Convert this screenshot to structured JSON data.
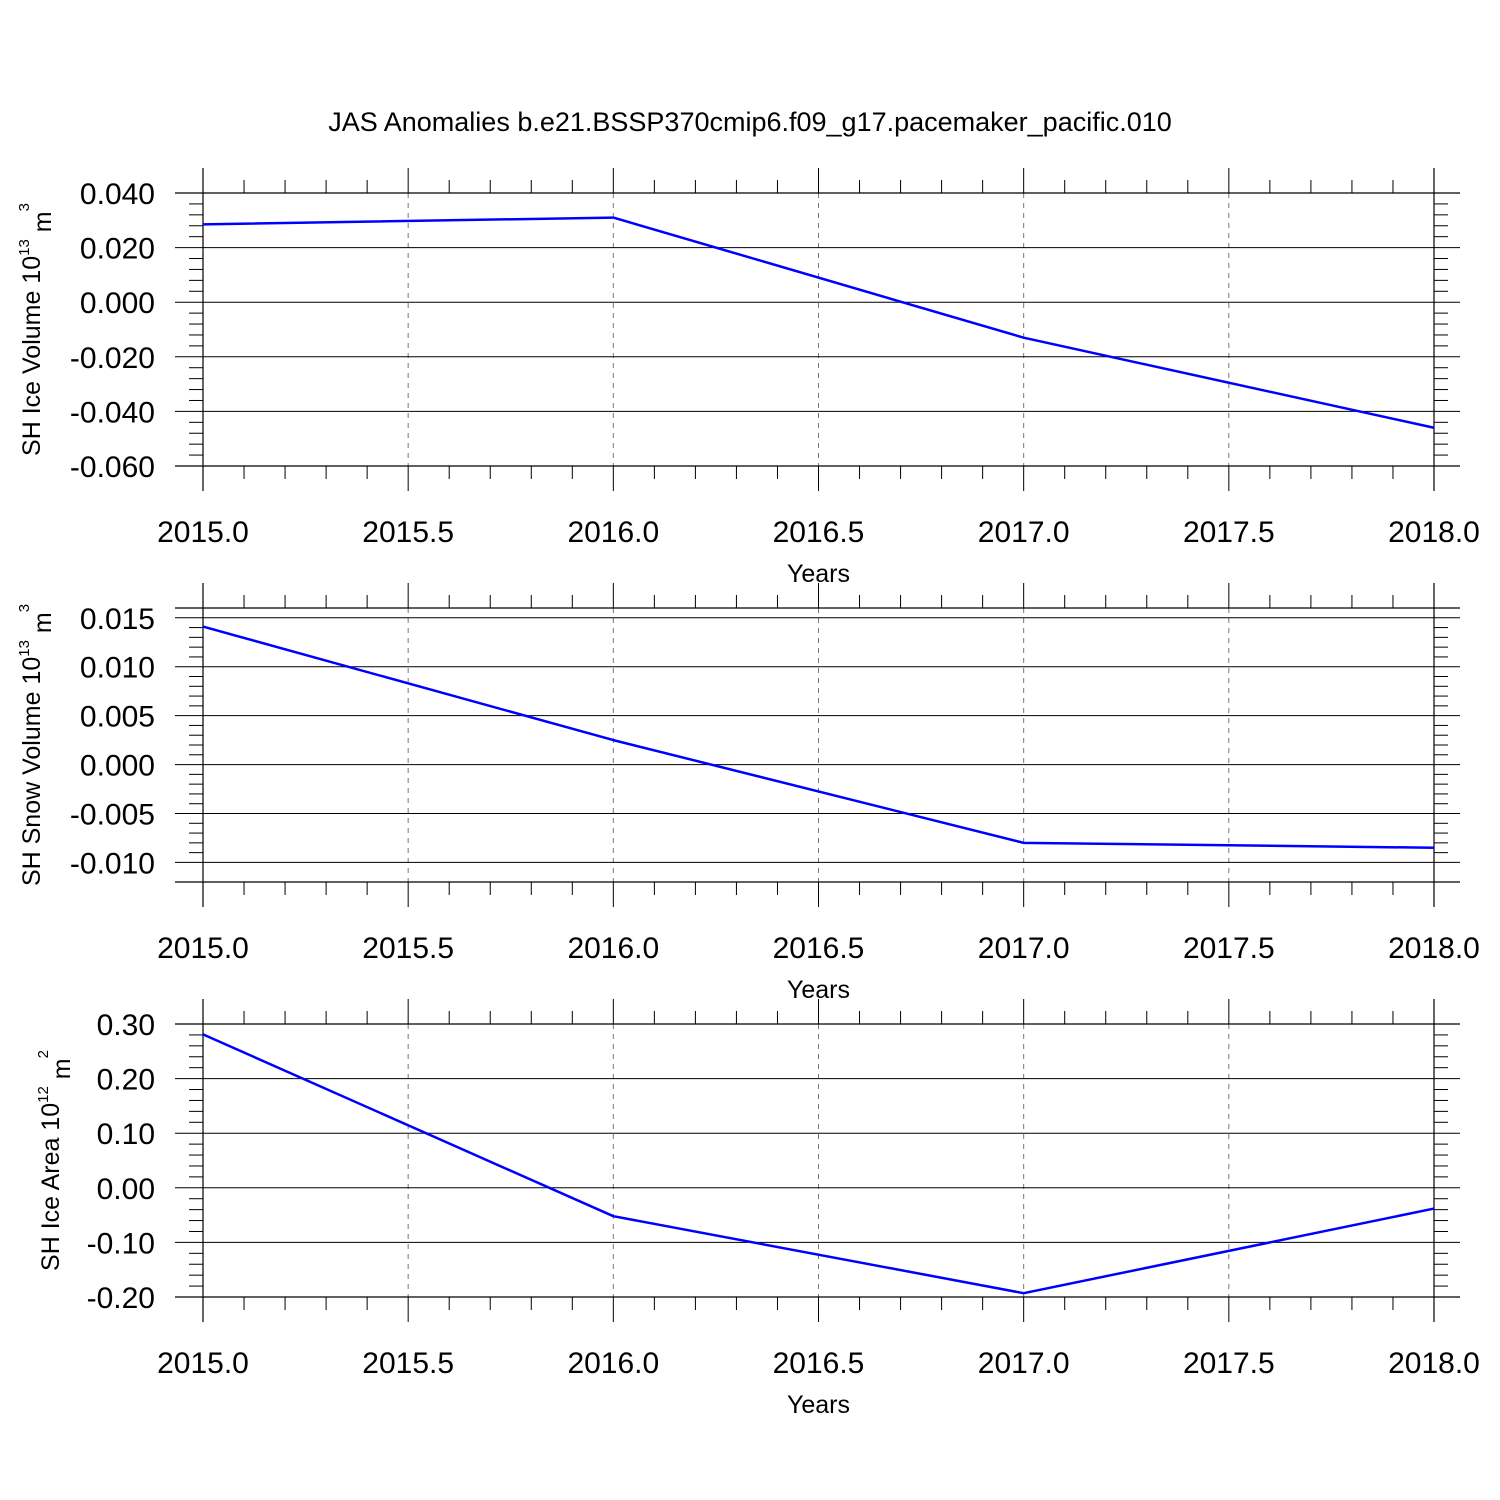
{
  "title": "JAS Anomalies b.e21.BSSP370cmip6.f09_g17.pacemaker_pacific.010",
  "colors": {
    "line": "#0000ff",
    "axis": "#000000",
    "grid": "#777777"
  },
  "chart_data": [
    {
      "type": "line",
      "ylabel_main": "SH Ice Volume 10",
      "ylabel_exp": "13",
      "ylabel_unit": " m",
      "ylabel_unit_exp": "3",
      "xlabel": "Years",
      "xlim": [
        2015.0,
        2018.0
      ],
      "ylim": [
        -0.06,
        0.04
      ],
      "x_ticks": [
        "2015.0",
        "2015.5",
        "2016.0",
        "2016.5",
        "2017.0",
        "2017.5",
        "2018.0"
      ],
      "y_ticks": [
        "0.040",
        "0.020",
        "0.000",
        "-0.020",
        "-0.040",
        "-0.060"
      ],
      "y_major_step": 0.02,
      "x": [
        2015.0,
        2016.0,
        2017.0,
        2018.0
      ],
      "values": [
        0.0285,
        0.031,
        -0.013,
        -0.046
      ],
      "grid": "vertical dashed"
    },
    {
      "type": "line",
      "ylabel_main": "SH Snow Volume 10",
      "ylabel_exp": "13",
      "ylabel_unit": " m",
      "ylabel_unit_exp": "3",
      "xlabel": "Years",
      "xlim": [
        2015.0,
        2018.0
      ],
      "ylim": [
        -0.012,
        0.016
      ],
      "x_ticks": [
        "2015.0",
        "2015.5",
        "2016.0",
        "2016.5",
        "2017.0",
        "2017.5",
        "2018.0"
      ],
      "y_ticks": [
        "0.015",
        "0.010",
        "0.005",
        "0.000",
        "-0.005",
        "-0.010"
      ],
      "y_major_step": 0.005,
      "x": [
        2015.0,
        2016.0,
        2017.0,
        2018.0
      ],
      "values": [
        0.0141,
        0.0025,
        -0.008,
        -0.0085
      ],
      "grid": "vertical dashed"
    },
    {
      "type": "line",
      "ylabel_main": "SH Ice Area 10",
      "ylabel_exp": "12",
      "ylabel_unit": " m",
      "ylabel_unit_exp": "2",
      "xlabel": "Years",
      "xlim": [
        2015.0,
        2018.0
      ],
      "ylim": [
        -0.2,
        0.3
      ],
      "x_ticks": [
        "2015.0",
        "2015.5",
        "2016.0",
        "2016.5",
        "2017.0",
        "2017.5",
        "2018.0"
      ],
      "y_ticks": [
        "0.30",
        "0.20",
        "0.10",
        "0.00",
        "-0.10",
        "-0.20"
      ],
      "y_major_step": 0.1,
      "x": [
        2015.0,
        2016.0,
        2017.0,
        2018.0
      ],
      "values": [
        0.281,
        -0.052,
        -0.193,
        -0.038
      ],
      "grid": "vertical dashed"
    }
  ]
}
